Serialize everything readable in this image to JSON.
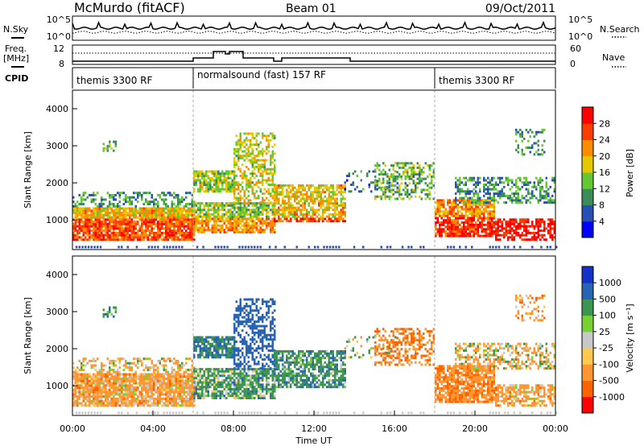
{
  "header": {
    "station": "McMurdo (fitACF)",
    "beam": "Beam 01",
    "date": "09/Oct/2011"
  },
  "left_labels": {
    "nsky": "N.Sky",
    "freq_line1": "Freq.",
    "freq_line2": "[MHz]",
    "cpid": "CPID"
  },
  "right_labels": {
    "nsearch": "N.Search",
    "nave": "Nave"
  },
  "top_axes": {
    "noise_top": "10^5",
    "noise_bottom": "10^0",
    "freq_top": "12",
    "freq_bottom": "8",
    "nave_top": "60",
    "nave_bottom": "0"
  },
  "cpid_blocks": [
    {
      "label": "themis 3300 RF",
      "start": 0,
      "end": 6
    },
    {
      "label": "normalsound (fast) 157 RF",
      "start": 6,
      "end": 18
    },
    {
      "label": "themis 3300 RF",
      "start": 18,
      "end": 24
    }
  ],
  "colors": {
    "power_scale": [
      "#0000ff",
      "#2850b4",
      "#3c8c5a",
      "#64c832",
      "#e6c800",
      "#ff8c00",
      "#ff3c00",
      "#ff0000"
    ],
    "velocity_scale": [
      "#ff0000",
      "#ff6400",
      "#ff9632",
      "#ffc850",
      "#c8c8c8",
      "#78d232",
      "#3c9650",
      "#2864b4",
      "#1432c8"
    ],
    "gray_scatter": "#c8c8c8"
  },
  "chart_data": [
    {
      "type": "heatmap",
      "name": "power",
      "xlabel": "",
      "ylabel": "Slant Range [km]",
      "x_range": [
        0,
        24
      ],
      "y_range": [
        200,
        4500
      ],
      "y_ticks": [
        1000,
        2000,
        3000,
        4000
      ],
      "colorbar": {
        "label": "Power [dB]",
        "ticks": [
          "4",
          "8",
          "12",
          "16",
          "20",
          "24",
          "28"
        ],
        "range": [
          0,
          30
        ]
      }
    },
    {
      "type": "heatmap",
      "name": "velocity",
      "xlabel": "Time UT",
      "ylabel": "Slant Range [km]",
      "x_range": [
        0,
        24
      ],
      "y_range": [
        200,
        4500
      ],
      "y_ticks": [
        1000,
        2000,
        3000,
        4000
      ],
      "x_tick_labels": [
        "00:00",
        "04:00",
        "08:00",
        "12:00",
        "16:00",
        "20:00",
        "00:00"
      ],
      "x_tick_values": [
        0,
        4,
        8,
        12,
        16,
        20,
        24
      ],
      "colorbar": {
        "label": "Velocity [m s⁻¹]",
        "ticks": [
          "1000",
          "500",
          "100",
          "25",
          "-25",
          "-100",
          "-500",
          "-1000"
        ]
      }
    }
  ]
}
